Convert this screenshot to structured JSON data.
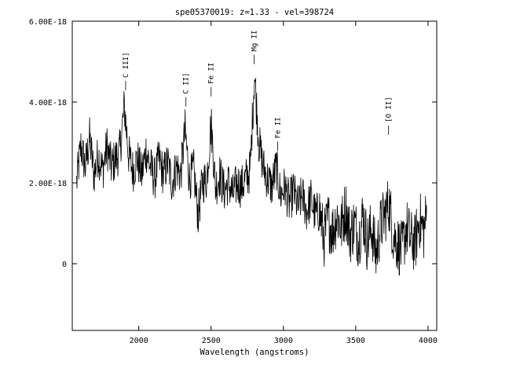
{
  "chart_data": {
    "type": "line",
    "title": "spe05370019: z=1.33 - vel=398724",
    "xlabel": "Wavelength (angstroms)",
    "ylabel": "",
    "xlim": [
      1540,
      4060
    ],
    "ylim": [
      -1.65e-18,
      6e-18
    ],
    "xticks": [
      2000,
      2500,
      3000,
      3500,
      4000
    ],
    "xtick_labels": [
      "2000",
      "2500",
      "3000",
      "3500",
      "4000"
    ],
    "yticks": [
      6e-18,
      4e-18,
      2e-18,
      0
    ],
    "ytick_labels": [
      "6.00E-18",
      "4.00E-18",
      "2.00E-18",
      "0"
    ],
    "grid": false,
    "series": [
      {
        "color": "#000000",
        "x": [
          1570,
          1600,
          1630,
          1660,
          1690,
          1720,
          1750,
          1780,
          1810,
          1840,
          1870,
          1900,
          1930,
          1960,
          1990,
          2020,
          2050,
          2080,
          2110,
          2140,
          2170,
          2200,
          2230,
          2260,
          2290,
          2320,
          2350,
          2380,
          2410,
          2440,
          2470,
          2500,
          2530,
          2560,
          2590,
          2620,
          2650,
          2680,
          2710,
          2740,
          2770,
          2800,
          2830,
          2860,
          2890,
          2920,
          2950,
          2980,
          3010,
          3040,
          3070,
          3100,
          3130,
          3160,
          3190,
          3220,
          3250,
          3280,
          3310,
          3340,
          3370,
          3400,
          3430,
          3460,
          3490,
          3520,
          3550,
          3580,
          3610,
          3640,
          3670,
          3700,
          3730,
          3760,
          3790,
          3820,
          3850,
          3880,
          3910,
          3940,
          3970,
          3990
        ],
        "y": [
          2e-18,
          2.9e-18,
          2.4e-18,
          3.1e-18,
          2.2e-18,
          2.7e-18,
          2.3e-18,
          2.9e-18,
          2.4e-18,
          2.6e-18,
          2.8e-18,
          3.9e-18,
          2.7e-18,
          2.3e-18,
          2.6e-18,
          2.2e-18,
          2.8e-18,
          2.4e-18,
          2.1e-18,
          2.6e-18,
          2.2e-18,
          2.5e-18,
          2e-18,
          2.4e-18,
          2.2e-18,
          3.3e-18,
          2.1e-18,
          2.3e-18,
          1.2e-18,
          2e-18,
          2.1e-18,
          3.5e-18,
          1.9e-18,
          2.2e-18,
          1.8e-18,
          2e-18,
          1.7e-18,
          2e-18,
          1.9e-18,
          2.1e-18,
          2.3e-18,
          4.7e-18,
          3e-18,
          2.4e-18,
          2.1e-18,
          1.9e-18,
          2.4e-18,
          1.7e-18,
          1.9e-18,
          1.5e-18,
          1.8e-18,
          1.4e-18,
          1.7e-18,
          1.3e-18,
          1.6e-18,
          1.2e-18,
          1.3e-18,
          6e-19,
          1.1e-18,
          8e-19,
          1.2e-18,
          9e-19,
          1.4e-18,
          7e-19,
          1e-18,
          6e-19,
          1.2e-18,
          5e-19,
          9e-19,
          2e-19,
          9e-19,
          1.2e-18,
          1.5e-18,
          7e-19,
          5e-19,
          3e-19,
          9e-19,
          6e-19,
          5e-19,
          1.1e-18,
          8e-19,
          1.2e-18
        ]
      }
    ],
    "annotations": [
      {
        "label": "C III]",
        "x": 1909,
        "y": 4.25e-18
      },
      {
        "label": "C II]",
        "x": 2326,
        "y": 3.85e-18
      },
      {
        "label": "Fe II",
        "x": 2500,
        "y": 4.1e-18
      },
      {
        "label": "Mg II",
        "x": 2798,
        "y": 4.9e-18
      },
      {
        "label": "Fe II",
        "x": 2960,
        "y": 2.75e-18
      },
      {
        "label": "[O II]",
        "x": 3727,
        "y": 3.15e-18
      }
    ]
  }
}
